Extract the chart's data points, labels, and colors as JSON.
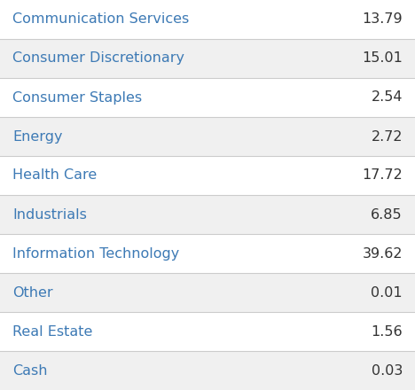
{
  "rows": [
    {
      "label": "Communication Services",
      "value": "13.79"
    },
    {
      "label": "Consumer Discretionary",
      "value": "15.01"
    },
    {
      "label": "Consumer Staples",
      "value": "2.54"
    },
    {
      "label": "Energy",
      "value": "2.72"
    },
    {
      "label": "Health Care",
      "value": "17.72"
    },
    {
      "label": "Industrials",
      "value": "6.85"
    },
    {
      "label": "Information Technology",
      "value": "39.62"
    },
    {
      "label": "Other",
      "value": "0.01"
    },
    {
      "label": "Real Estate",
      "value": "1.56"
    },
    {
      "label": "Cash",
      "value": "0.03"
    }
  ],
  "row_bg_even": "#ffffff",
  "row_bg_odd": "#f0f0f0",
  "label_color": "#3d7ab5",
  "value_color": "#333333",
  "fig_bg": "#f0f0f0",
  "font_size": 11.5,
  "fig_width": 4.68,
  "fig_height": 4.4
}
